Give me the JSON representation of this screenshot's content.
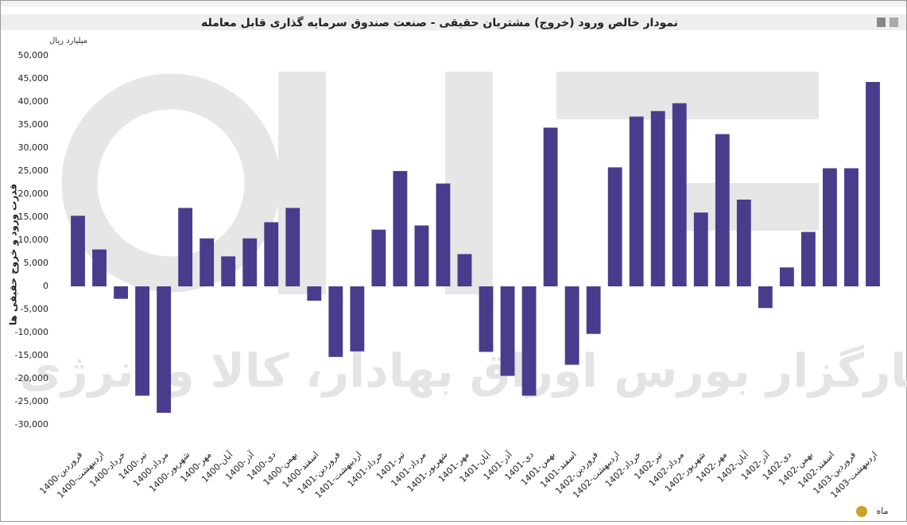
{
  "chart_data": {
    "type": "bar",
    "title": "نمودار خالص ورود (خروج) مشتریان حقیقی - صنعت صندوق سرمایه گذاری قابل معامله",
    "y_label": "قدرت ورود و خروج حقیقی ها",
    "y_unit": "میلیارد ریال",
    "x_label": "ماه",
    "watermark": "کارگزار بورس اوراق بهادار، کالا و انرژی",
    "color": "#4a3c8c",
    "categories": [
      "1400-فروردین",
      "1400-اردیبهشت",
      "1400-خرداد",
      "1400-تیر",
      "1400-مرداد",
      "1400-شهریور",
      "1400-مهر",
      "1400-آبان",
      "1400-آذر",
      "1400-دی",
      "1400-بهمن",
      "1400-اسفند",
      "1401-فروردین",
      "1401-اردیبهشت",
      "1401-خرداد",
      "1401-تیر",
      "1401-مرداد",
      "1401-شهریور",
      "1401-مهر",
      "1401-آبان",
      "1401-آذر",
      "1401-دی",
      "1401-بهمن",
      "1401-اسفند",
      "1402-فروردین",
      "1402-اردیبهشت",
      "1402-خرداد",
      "1402-تیر",
      "1402-مرداد",
      "1402-شهریور",
      "1402-مهر",
      "1402-آبان",
      "1402-آذر",
      "1402-دی",
      "1402-بهمن",
      "1402-اسفند",
      "1403-فروردین",
      "1403-اردیبهشت"
    ],
    "values": [
      15300,
      8000,
      -2700,
      -23700,
      -27400,
      17000,
      10400,
      6500,
      10400,
      13900,
      17000,
      -3100,
      -15300,
      -14100,
      12300,
      25000,
      13200,
      22300,
      7000,
      -14200,
      -19400,
      -23700,
      34400,
      -17000,
      -10300,
      25800,
      36800,
      38000,
      39700,
      16000,
      33000,
      18800,
      -4700,
      4100,
      11800,
      25600,
      25600,
      44300
    ],
    "ylim": [
      -30000,
      50000
    ],
    "yticks": [
      {
        "value": -30000,
        "label": "-30,000"
      },
      {
        "value": -25000,
        "label": "-25,000"
      },
      {
        "value": -20000,
        "label": "-20,000"
      },
      {
        "value": -15000,
        "label": "-15,000"
      },
      {
        "value": -10000,
        "label": "-10,000"
      },
      {
        "value": -5000,
        "label": "-5,000"
      },
      0,
      {
        "value": 5000,
        "label": "5,000"
      },
      {
        "value": 10000,
        "label": "10,000"
      },
      {
        "value": 15000,
        "label": "15,000"
      },
      {
        "value": 20000,
        "label": "20,000"
      },
      {
        "value": 25000,
        "label": "25,000"
      },
      {
        "value": 30000,
        "label": "30,000"
      },
      {
        "value": 35000,
        "label": "35,000"
      },
      {
        "value": 40000,
        "label": "40,000"
      },
      {
        "value": 45000,
        "label": "45,000"
      },
      {
        "value": 50000,
        "label": "50,000"
      }
    ]
  }
}
